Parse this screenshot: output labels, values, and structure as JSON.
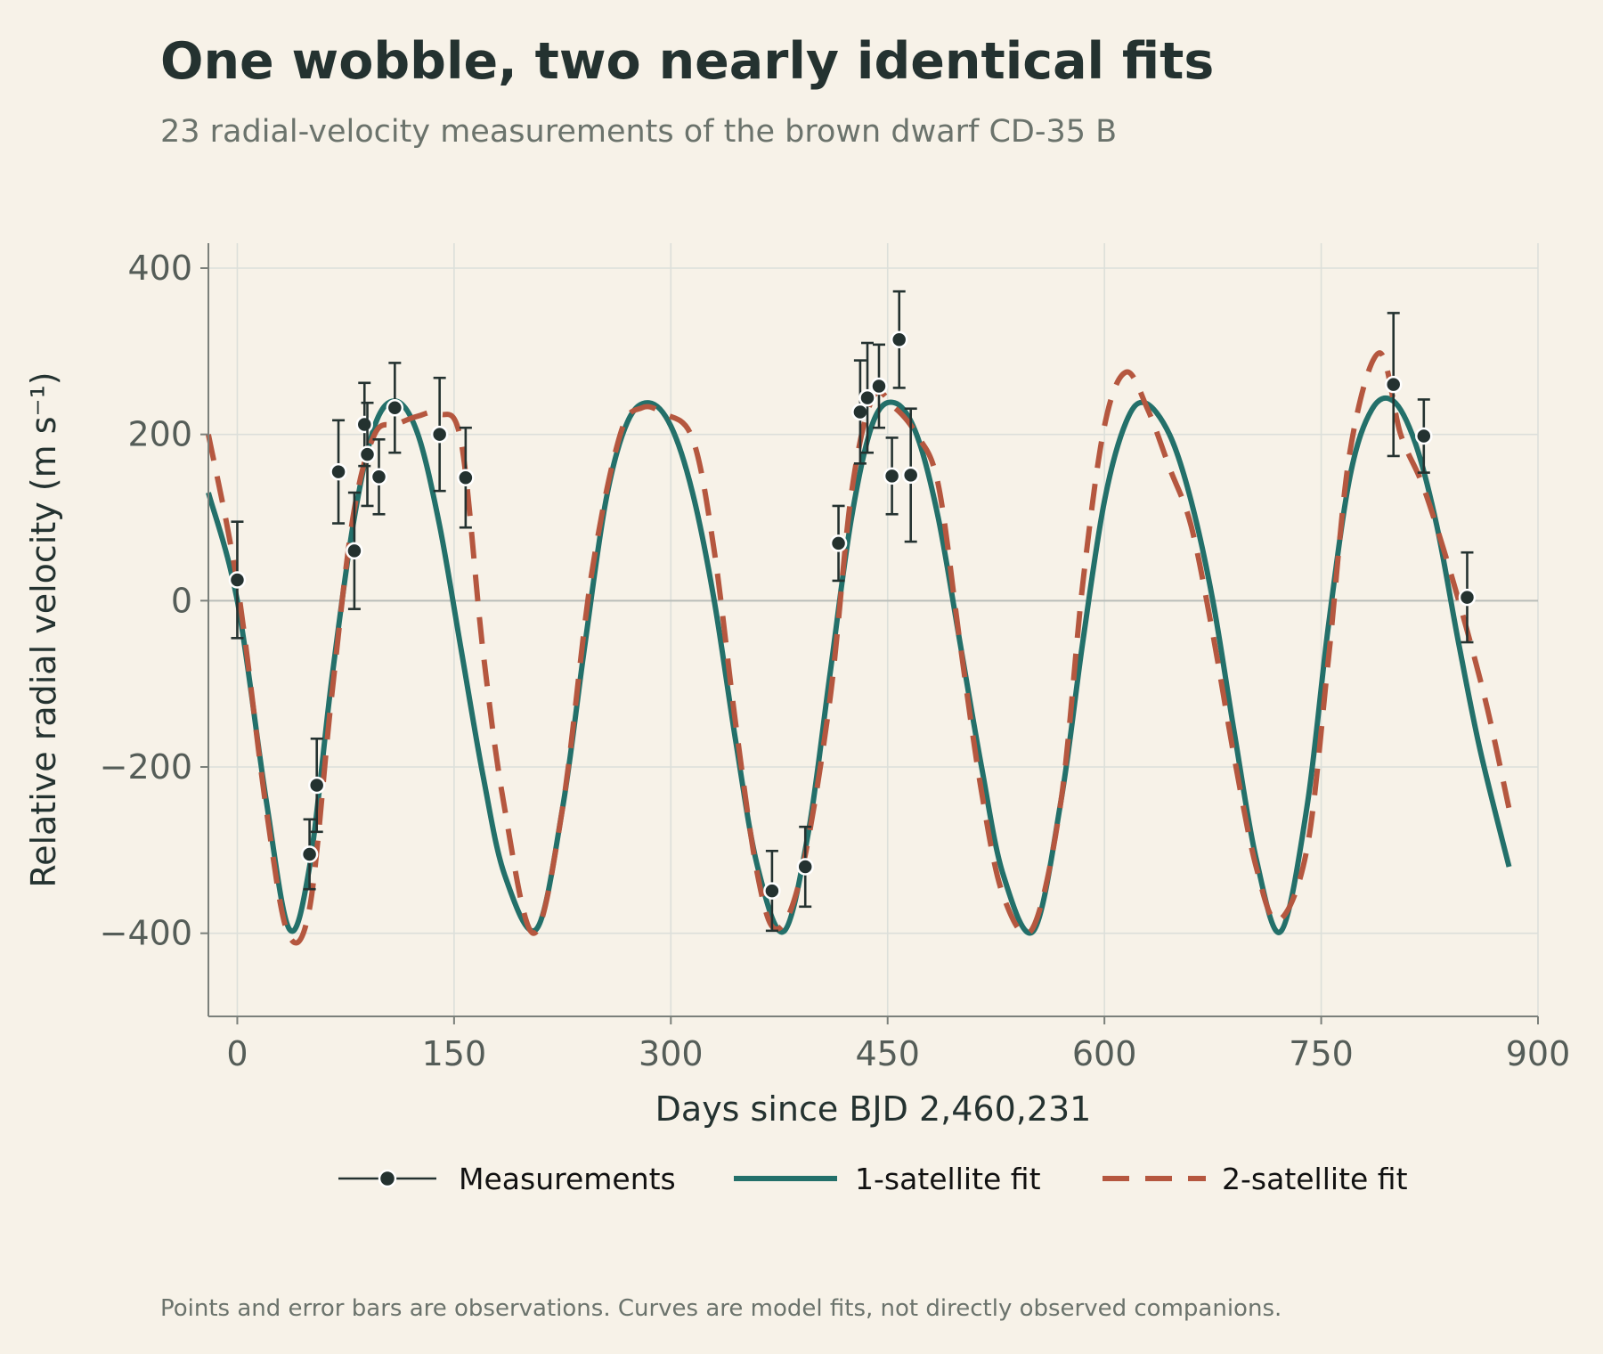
{
  "title": "One wobble, two nearly identical fits",
  "subtitle": "23 radial-velocity measurements of the brown dwarf CD-35 B",
  "footnote": "Points and error bars are observations. Curves are model fits, not directly observed companions.",
  "colors": {
    "background": "#f7f2e8",
    "measurements": "#243230",
    "fit1": "#23706a",
    "fit2": "#b5573f",
    "grid": "#dcdfda",
    "text": "#243230",
    "muted": "#6b736c"
  },
  "chart_data": {
    "type": "scatter",
    "xlabel": "Days since BJD 2,460,231",
    "ylabel": "Relative radial velocity (m s⁻¹)",
    "xlim": [
      -20,
      900
    ],
    "ylim": [
      -500,
      430
    ],
    "xticks": [
      0,
      150,
      300,
      450,
      600,
      750,
      900
    ],
    "yticks": [
      -400,
      -200,
      0,
      200,
      400
    ],
    "ytick_labels": [
      "−400",
      "−200",
      "0",
      "200",
      "400"
    ],
    "grid": true,
    "legend_position": "bottom",
    "legend": [
      {
        "label": "Measurements",
        "style": "marker-line"
      },
      {
        "label": "1-satellite fit",
        "style": "solid"
      },
      {
        "label": "2-satellite fit",
        "style": "dashed"
      }
    ],
    "measurements": {
      "name": "Measurements",
      "x": [
        0,
        50,
        55,
        70,
        81,
        88,
        90,
        98,
        109,
        140,
        158,
        370,
        393,
        416,
        431,
        436,
        444,
        453,
        458,
        466,
        800,
        821,
        851
      ],
      "y": [
        25,
        -305,
        -222,
        155,
        60,
        212,
        176,
        149,
        232,
        200,
        148,
        -349,
        -320,
        69,
        227,
        244,
        258,
        150,
        314,
        151,
        260,
        198,
        4
      ],
      "err": [
        70,
        42,
        56,
        62,
        70,
        50,
        62,
        45,
        54,
        68,
        60,
        48,
        48,
        45,
        62,
        66,
        50,
        46,
        58,
        80,
        86,
        44,
        54
      ]
    },
    "series": [
      {
        "name": "1-satellite fit",
        "x": [
          -20,
          0,
          20,
          36,
          50,
          65,
          80,
          95,
          110,
          125,
          140,
          155,
          170,
          185,
          207,
          225,
          240,
          255,
          270,
          285,
          300,
          315,
          330,
          345,
          360,
          378,
          395,
          410,
          425,
          440,
          455,
          470,
          485,
          500,
          515,
          530,
          551,
          570,
          585,
          600,
          615,
          628,
          645,
          660,
          675,
          690,
          705,
          722,
          740,
          755,
          770,
          785,
          800,
          815,
          830,
          845,
          860,
          880
        ],
        "y": [
          130,
          0,
          -240,
          -395,
          -320,
          -100,
          90,
          210,
          240,
          200,
          90,
          -60,
          -210,
          -330,
          -395,
          -250,
          -60,
          120,
          215,
          238,
          210,
          130,
          0,
          -170,
          -320,
          -398,
          -280,
          -90,
          100,
          215,
          238,
          200,
          100,
          -50,
          -200,
          -330,
          -397,
          -240,
          -50,
          120,
          215,
          238,
          200,
          120,
          0,
          -160,
          -310,
          -398,
          -250,
          -30,
          150,
          230,
          240,
          190,
          90,
          -50,
          -180,
          -320
        ]
      },
      {
        "name": "2-satellite fit",
        "x": [
          -20,
          0,
          20,
          35,
          50,
          65,
          80,
          95,
          110,
          125,
          140,
          155,
          170,
          185,
          205,
          225,
          245,
          265,
          280,
          295,
          315,
          330,
          345,
          360,
          373,
          390,
          410,
          425,
          440,
          455,
          470,
          485,
          500,
          515,
          530,
          550,
          570,
          585,
          600,
          615,
          630,
          645,
          660,
          675,
          690,
          705,
          720,
          740,
          755,
          770,
          790,
          805,
          820,
          835,
          850,
          865,
          880
        ],
        "y": [
          200,
          20,
          -250,
          -400,
          -370,
          -120,
          100,
          200,
          212,
          222,
          225,
          190,
          -60,
          -250,
          -400,
          -250,
          30,
          200,
          232,
          225,
          195,
          60,
          -150,
          -330,
          -395,
          -330,
          -120,
          130,
          245,
          232,
          200,
          140,
          -50,
          -230,
          -355,
          -395,
          -240,
          20,
          210,
          275,
          230,
          160,
          90,
          -40,
          -190,
          -320,
          -385,
          -300,
          -70,
          180,
          298,
          200,
          140,
          60,
          -30,
          -130,
          -250
        ]
      }
    ]
  }
}
